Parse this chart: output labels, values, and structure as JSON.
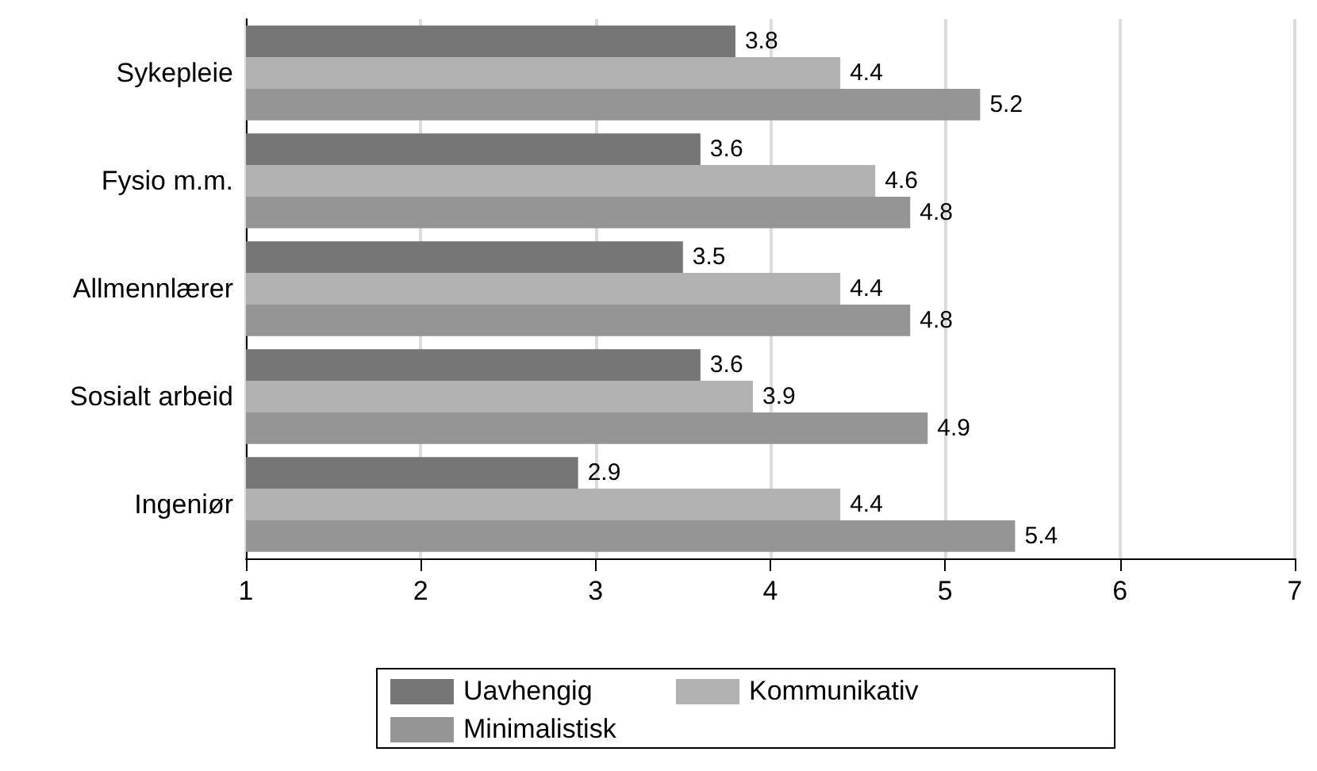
{
  "chart_data": {
    "type": "bar",
    "orientation": "horizontal",
    "categories": [
      "Sykepleie",
      "Fysio m.m.",
      "Allmennlærer",
      "Sosialt arbeid",
      "Ingeniør"
    ],
    "series": [
      {
        "name": "Uavhengig",
        "color": "#767676",
        "values": [
          3.8,
          3.6,
          3.5,
          3.6,
          2.9
        ]
      },
      {
        "name": "Kommunikativ",
        "color": "#b2b2b2",
        "values": [
          4.4,
          4.6,
          4.4,
          3.9,
          4.4
        ]
      },
      {
        "name": "Minimalistisk",
        "color": "#959595",
        "values": [
          5.2,
          4.8,
          4.8,
          4.9,
          5.4
        ]
      }
    ],
    "xlim": [
      1,
      7
    ],
    "xticks": [
      1,
      2,
      3,
      4,
      5,
      6,
      7
    ],
    "grid": "x",
    "legend": "bottom",
    "data_labels": true
  }
}
